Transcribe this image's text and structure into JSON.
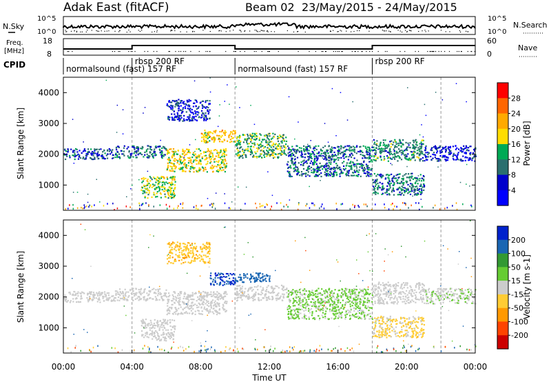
{
  "header": {
    "station": "Adak East (fitACF)",
    "beam": "Beam 02",
    "dates": "23/May/2015 - 24/May/2015"
  },
  "top_panels": {
    "nsky_label": "N.Sky",
    "nsky_ticks": [
      "10^5",
      "10^0"
    ],
    "nsearch_label": "N.Search",
    "nsearch_ticks": [
      "10^5",
      "10^0"
    ],
    "freq_label_1": "Freq.",
    "freq_label_2": "[MHz]",
    "freq_ticks": [
      "18",
      "8"
    ],
    "nave_label": "Nave",
    "nave_ticks": [
      "60",
      "0"
    ],
    "cpid_label": "CPID",
    "cpid_segments": [
      {
        "start_h": 0,
        "end_h": 4,
        "label": "normalsound (fast) 157 RF"
      },
      {
        "start_h": 4,
        "end_h": 10,
        "label": "rbsp 200 RF"
      },
      {
        "start_h": 10,
        "end_h": 18,
        "label": "normalsound (fast) 157 RF"
      },
      {
        "start_h": 18,
        "end_h": 24,
        "label": "rbsp 200 RF"
      }
    ]
  },
  "chart_data": [
    {
      "type": "heatmap",
      "name": "power",
      "ylabel": "Slant Range [km]",
      "x_range_h": [
        0,
        24
      ],
      "ylim": [
        180,
        4500
      ],
      "yticks": [
        1000,
        2000,
        3000,
        4000
      ],
      "colorbar_label": "Power [dB]",
      "colorbar_ticks": [
        "28",
        "24",
        "20",
        "16",
        "12",
        "8",
        "4"
      ],
      "colorbar_colors": [
        "#ff0000",
        "#ff6600",
        "#ffaa00",
        "#ffdd00",
        "#00aa55",
        "#2a6f6f",
        "#0000cc",
        "#0000ff"
      ],
      "bands": [
        {
          "t0": 0.0,
          "t1": 3.0,
          "r0": 1850,
          "r1": 2200,
          "power": 8
        },
        {
          "t0": 3.0,
          "t1": 6.0,
          "r0": 1900,
          "r1": 2300,
          "power": 10
        },
        {
          "t0": 6.0,
          "t1": 9.5,
          "r0": 1450,
          "r1": 2200,
          "power": 18
        },
        {
          "t0": 4.5,
          "t1": 6.5,
          "r0": 600,
          "r1": 1300,
          "power": 16
        },
        {
          "t0": 6.0,
          "t1": 8.5,
          "r0": 3100,
          "r1": 3800,
          "power": 6
        },
        {
          "t0": 8.0,
          "t1": 10.0,
          "r0": 2400,
          "r1": 2800,
          "power": 20
        },
        {
          "t0": 10.0,
          "t1": 13.0,
          "r0": 1900,
          "r1": 2700,
          "power": 14
        },
        {
          "t0": 13.0,
          "t1": 18.0,
          "r0": 1300,
          "r1": 2300,
          "power": 10
        },
        {
          "t0": 18.0,
          "t1": 21.0,
          "r0": 1800,
          "r1": 2500,
          "power": 12
        },
        {
          "t0": 18.0,
          "t1": 21.0,
          "r0": 700,
          "r1": 1400,
          "power": 10
        },
        {
          "t0": 21.0,
          "t1": 24.0,
          "r0": 1800,
          "r1": 2300,
          "power": 6
        }
      ]
    },
    {
      "type": "heatmap",
      "name": "velocity",
      "ylabel": "Slant Range [km]",
      "xlabel": "Time UT",
      "x_range_h": [
        0,
        24
      ],
      "ylim": [
        180,
        4500
      ],
      "yticks": [
        1000,
        2000,
        3000,
        4000
      ],
      "xticks": [
        "00:00",
        "04:00",
        "08:00",
        "12:00",
        "16:00",
        "20:00",
        "00:00"
      ],
      "colorbar_label": "Velocity [m s-1]",
      "colorbar_ticks": [
        "200",
        "100",
        "50",
        "15",
        "-15",
        "-50",
        "-100",
        "-200"
      ],
      "colorbar_colors": [
        "#0022cc",
        "#1a66b3",
        "#339933",
        "#66cc33",
        "#cccccc",
        "#ffcc33",
        "#ff9900",
        "#ff4400",
        "#cc0000"
      ],
      "bands": [
        {
          "t0": 0.0,
          "t1": 3.0,
          "r0": 1850,
          "r1": 2200,
          "vel": 0
        },
        {
          "t0": 3.0,
          "t1": 6.0,
          "r0": 1900,
          "r1": 2300,
          "vel": 0
        },
        {
          "t0": 6.0,
          "t1": 9.5,
          "r0": 1450,
          "r1": 2200,
          "vel": 0
        },
        {
          "t0": 4.5,
          "t1": 6.5,
          "r0": 600,
          "r1": 1300,
          "vel": 0
        },
        {
          "t0": 6.0,
          "t1": 8.5,
          "r0": 3100,
          "r1": 3800,
          "vel": -40
        },
        {
          "t0": 8.5,
          "t1": 10.0,
          "r0": 2400,
          "r1": 2800,
          "vel": 200
        },
        {
          "t0": 10.0,
          "t1": 12.0,
          "r0": 2500,
          "r1": 2800,
          "vel": 180
        },
        {
          "t0": 10.0,
          "t1": 13.0,
          "r0": 1900,
          "r1": 2400,
          "vel": 0
        },
        {
          "t0": 13.0,
          "t1": 18.0,
          "r0": 1300,
          "r1": 2300,
          "vel": 20
        },
        {
          "t0": 18.0,
          "t1": 21.0,
          "r0": 1800,
          "r1": 2500,
          "vel": 0
        },
        {
          "t0": 18.0,
          "t1": 21.0,
          "r0": 700,
          "r1": 1400,
          "vel": -20
        },
        {
          "t0": 21.0,
          "t1": 24.0,
          "r0": 1800,
          "r1": 2300,
          "vel": 10
        }
      ]
    }
  ]
}
